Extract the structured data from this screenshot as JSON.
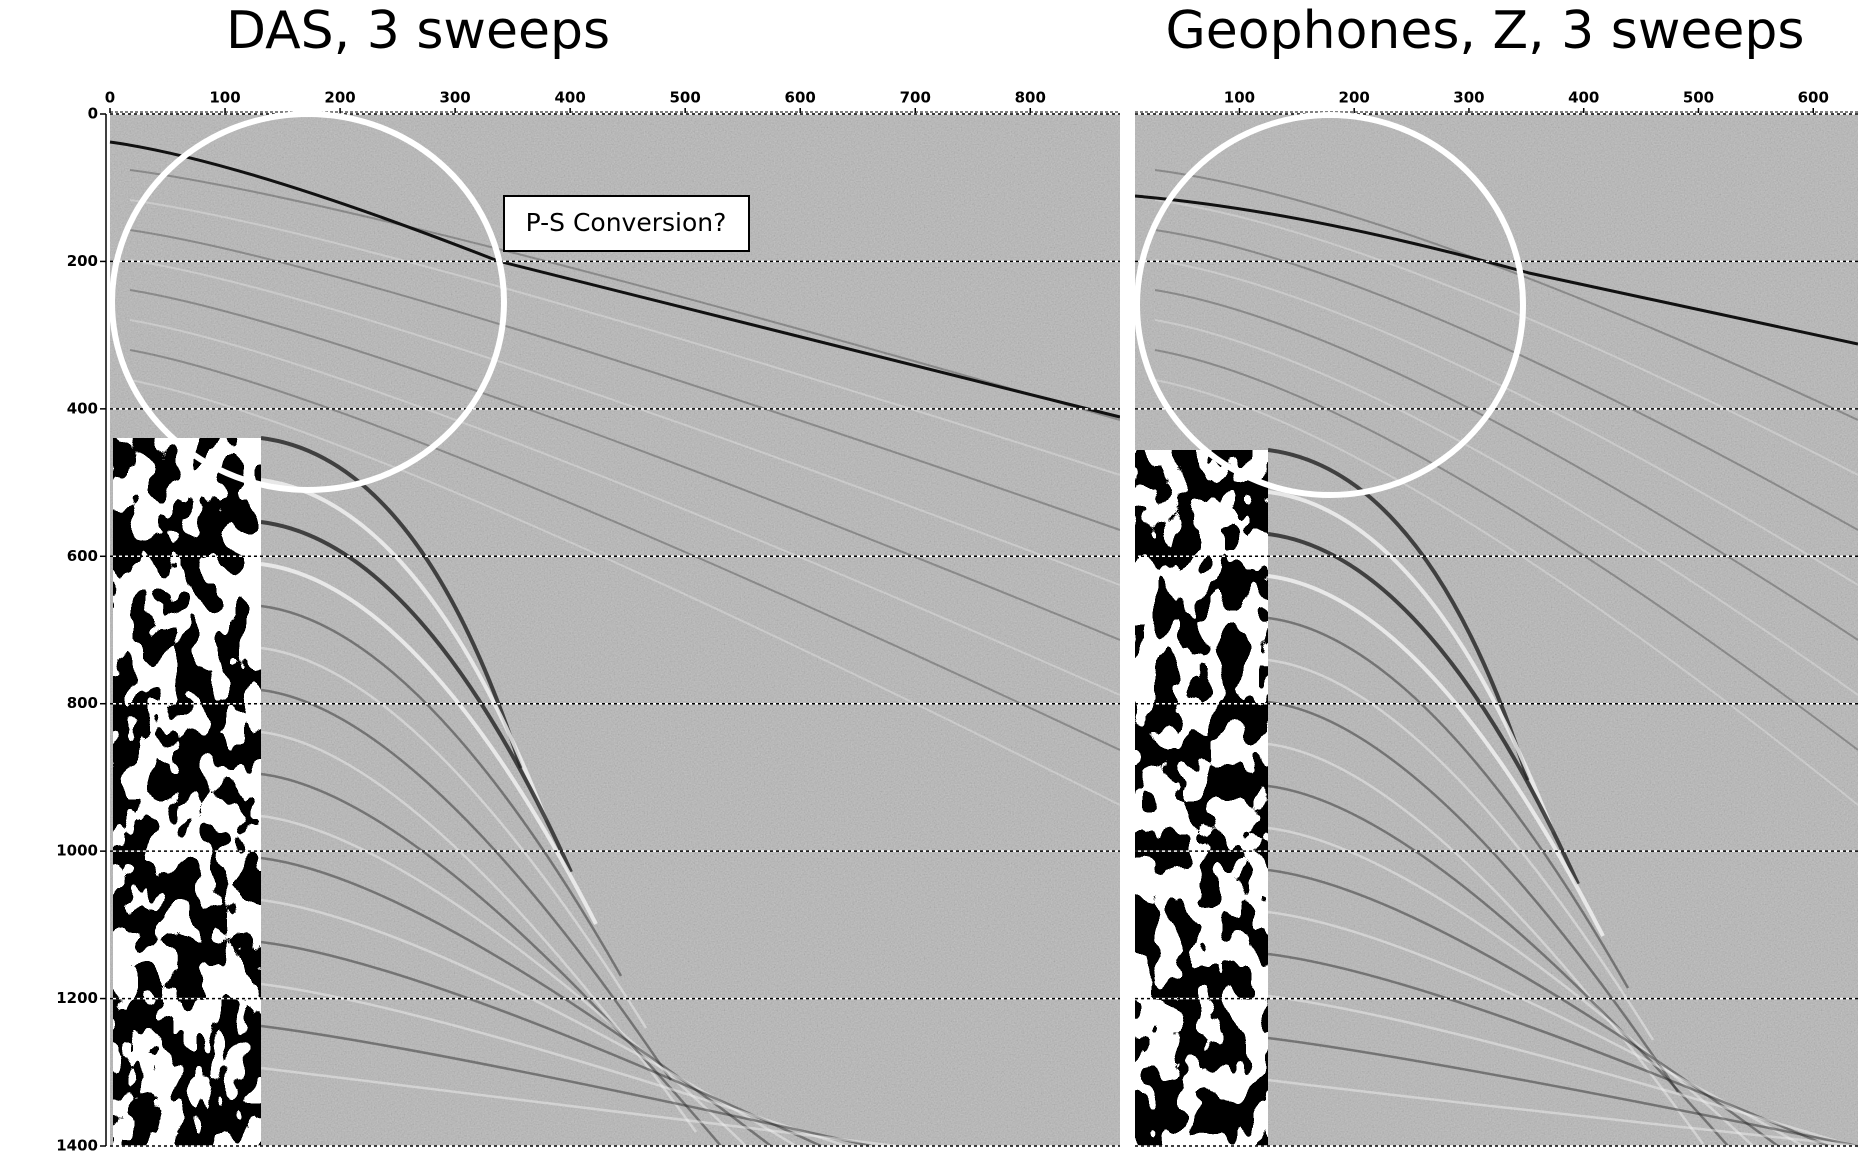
{
  "chart_data": [
    {
      "type": "image",
      "title": "DAS, 3 sweeps",
      "annotation": "P-S Conversion?",
      "xlim": [
        0,
        878
      ],
      "xticks": [
        0,
        100,
        200,
        300,
        400,
        500,
        600,
        700,
        800
      ],
      "ylim": [
        0,
        1400
      ],
      "yticks": [
        0,
        200,
        400,
        600,
        800,
        1000,
        1200,
        1400
      ],
      "grid": true
    },
    {
      "type": "image",
      "title": "Geophones, Z, 3 sweeps",
      "xlim": [
        9,
        639
      ],
      "xticks": [
        100,
        200,
        300,
        400,
        500,
        600
      ],
      "ylim": [
        0,
        1400
      ],
      "grid": true
    }
  ]
}
